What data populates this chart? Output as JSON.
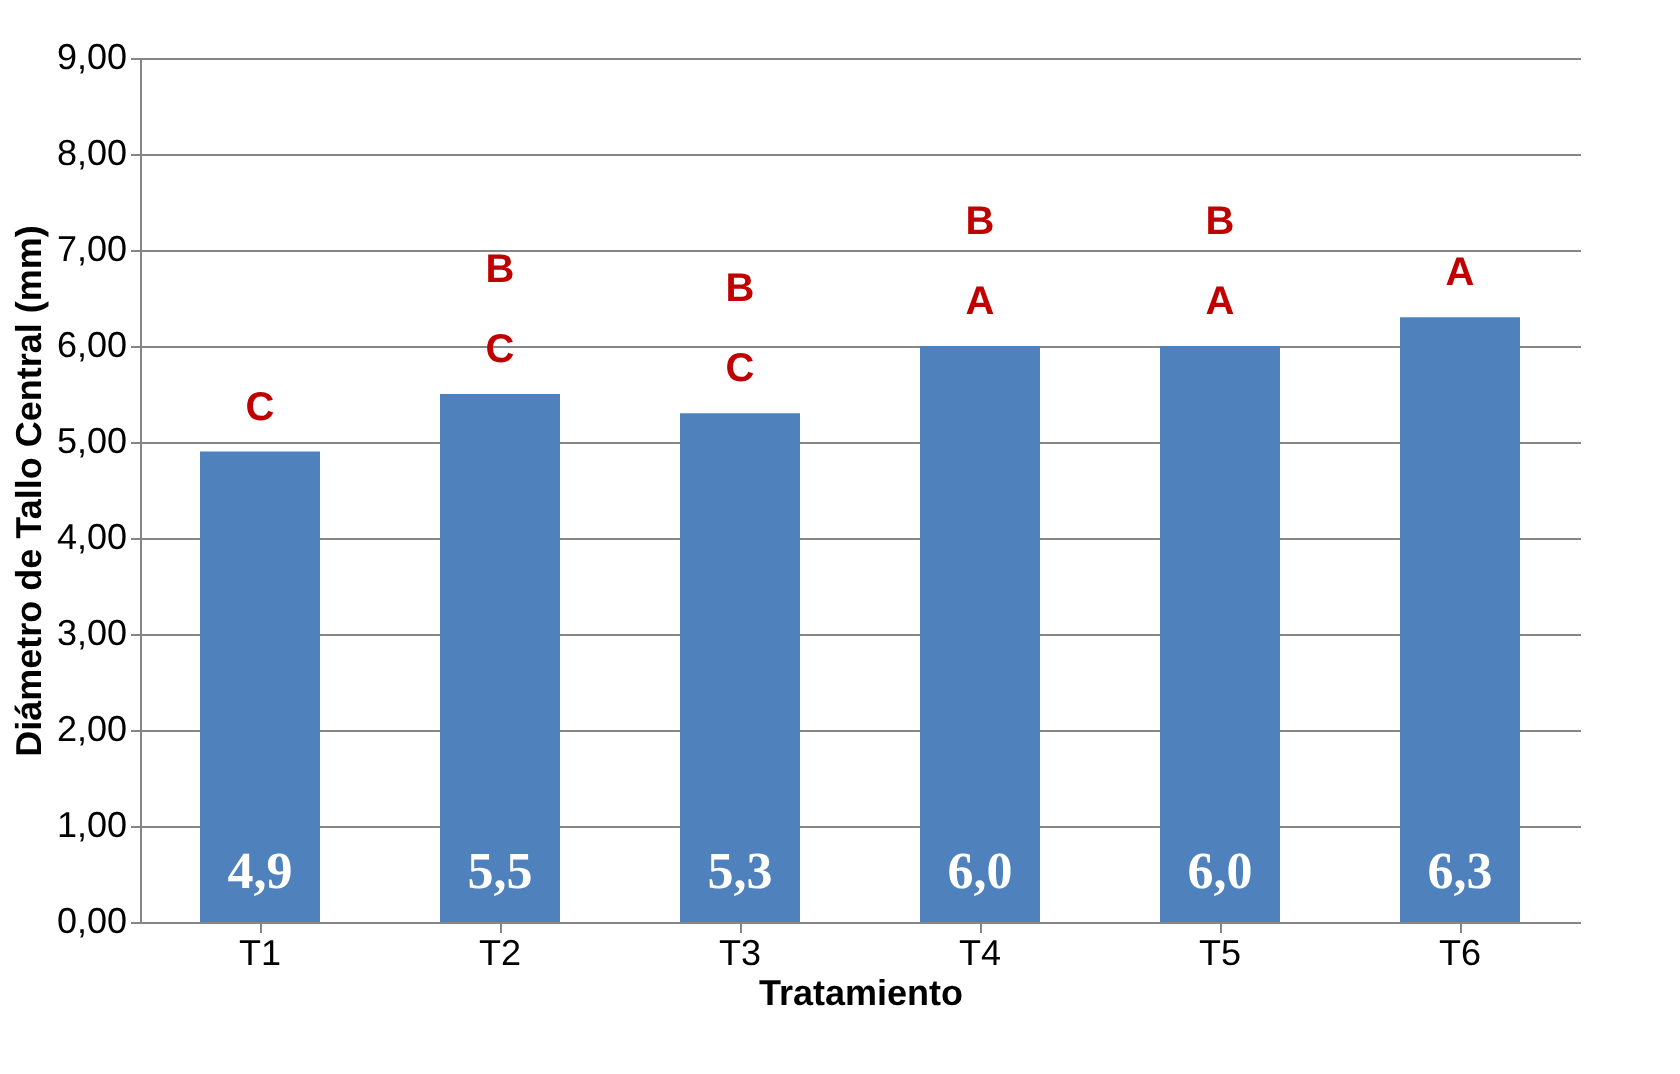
{
  "chart_data": {
    "type": "bar",
    "xlabel": "Tratamiento",
    "ylabel": "Diámetro de Tallo Central (mm)",
    "categories": [
      "T1",
      "T2",
      "T3",
      "T4",
      "T5",
      "T6"
    ],
    "values": [
      4.9,
      5.5,
      5.3,
      6.0,
      6.0,
      6.3
    ],
    "value_labels": [
      "4,9",
      "5,5",
      "5,3",
      "6,0",
      "6,0",
      "6,3"
    ],
    "color": "#4f81bd",
    "ylim": [
      0,
      9
    ],
    "yticks": [
      {
        "value": 0,
        "label": "0,00"
      },
      {
        "value": 1,
        "label": "1,00"
      },
      {
        "value": 2,
        "label": "2,00"
      },
      {
        "value": 3,
        "label": "3,00"
      },
      {
        "value": 4,
        "label": "4,00"
      },
      {
        "value": 5,
        "label": "5,00"
      },
      {
        "value": 6,
        "label": "6,00"
      },
      {
        "value": 7,
        "label": "7,00"
      },
      {
        "value": 8,
        "label": "8,00"
      },
      {
        "value": 9,
        "label": "9,00"
      }
    ],
    "grid": "y",
    "annotations": [
      "C",
      "C",
      "B",
      "C",
      "B",
      "A",
      "B",
      "A",
      "B",
      "A"
    ]
  }
}
